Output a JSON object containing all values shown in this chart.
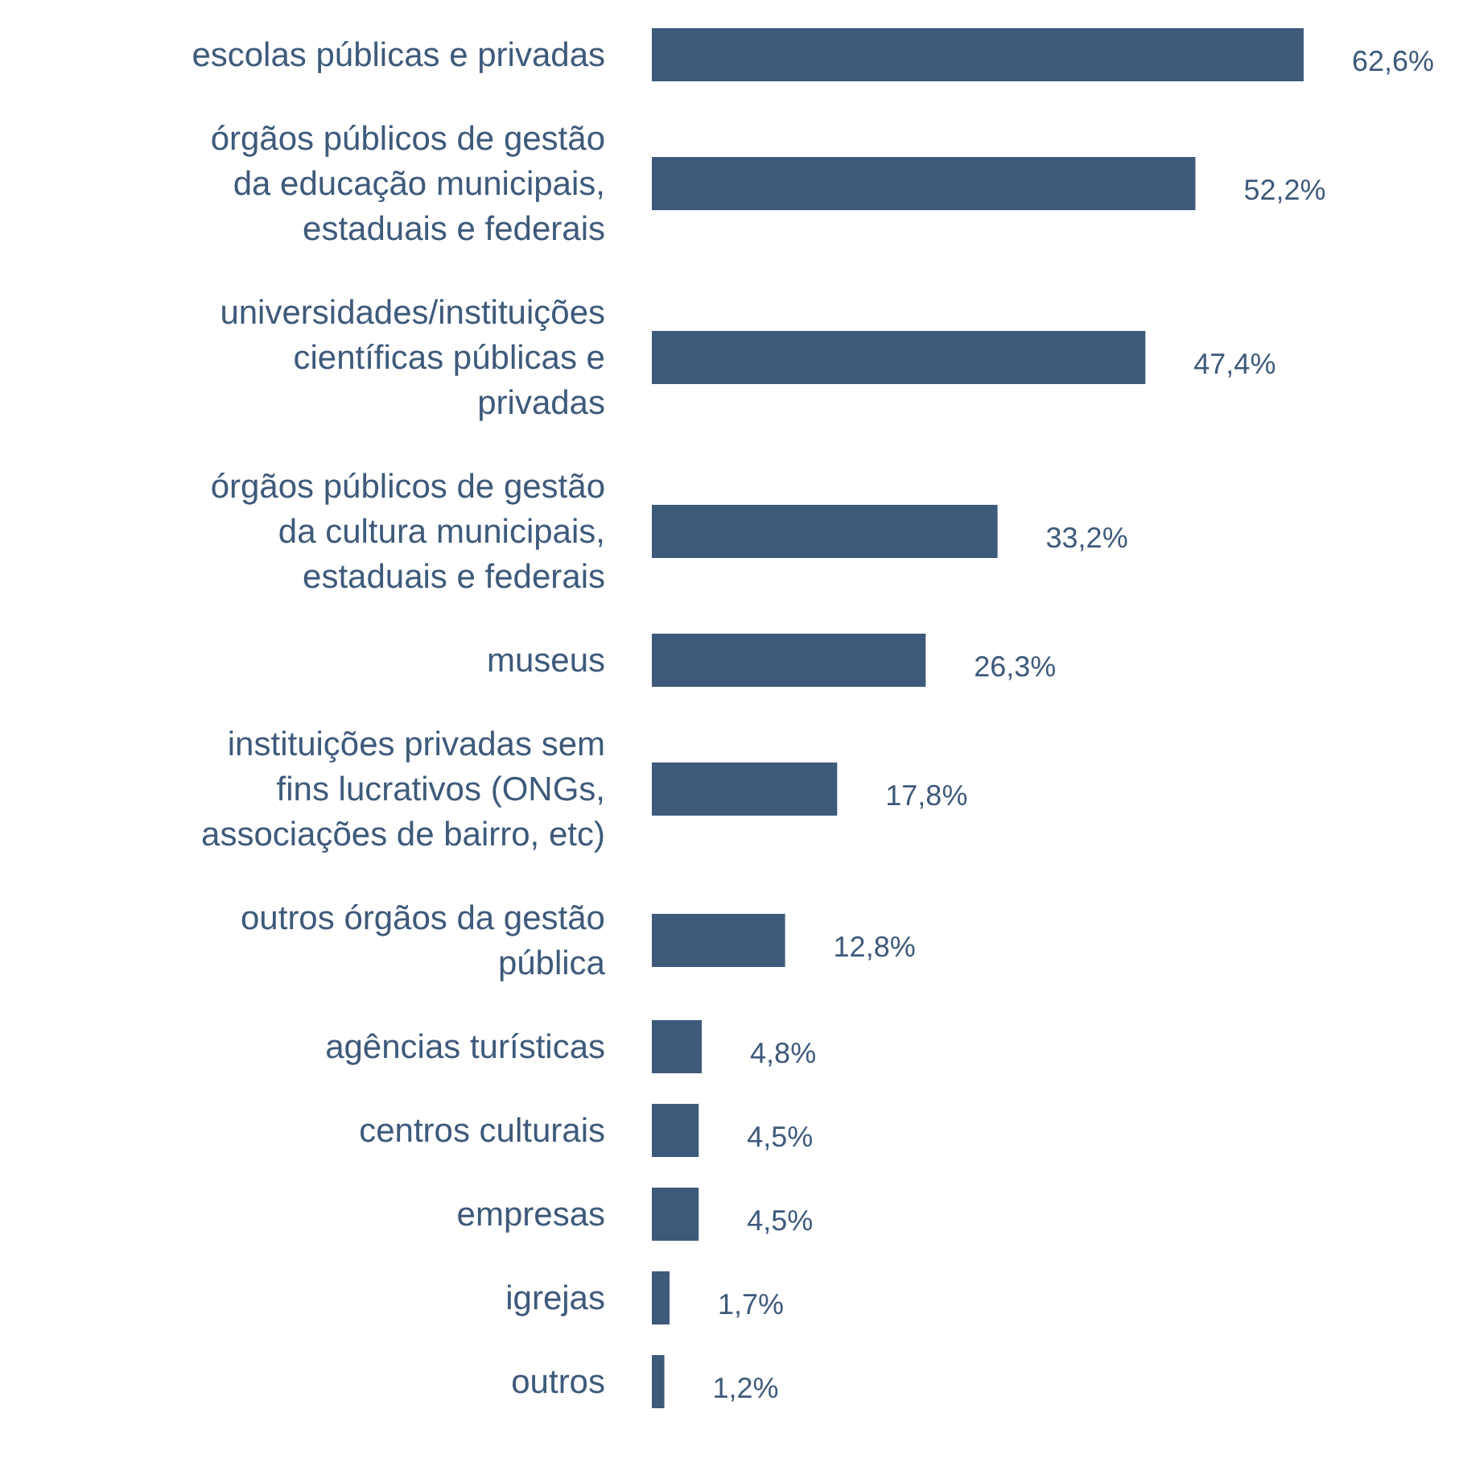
{
  "chart_data": {
    "type": "bar",
    "orientation": "horizontal",
    "color": "#3e5a7b",
    "categories": [
      "escolas públicas e privadas",
      "órgãos públicos de gestão da educação municipais, estaduais e federais",
      "universidades/instituições científicas públicas e privadas",
      "órgãos públicos de gestão da cultura municipais, estaduais e federais",
      "museus",
      "instituições privadas sem fins lucrativos (ONGs, associações de bairro, etc)",
      "outros órgãos da gestão pública",
      "agências turísticas",
      "centros culturais",
      "empresas",
      "igrejas",
      "outros"
    ],
    "values": [
      62.6,
      52.2,
      47.4,
      33.2,
      26.3,
      17.8,
      12.8,
      4.8,
      4.5,
      4.5,
      1.7,
      1.2
    ],
    "value_labels": [
      "62,6%",
      "52,2%",
      "47,4%",
      "33,2%",
      "26,3%",
      "17,8%",
      "12,8%",
      "4,8%",
      "4,5%",
      "4,5%",
      "1,7%",
      "1,2%"
    ]
  }
}
